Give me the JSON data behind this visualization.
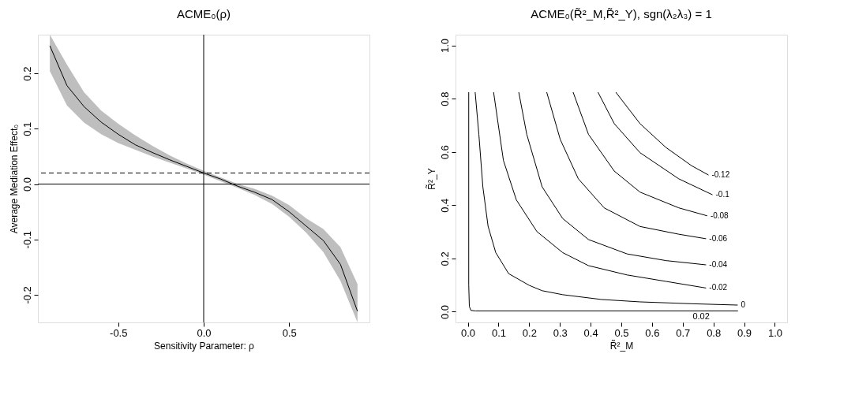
{
  "chart_data": [
    {
      "type": "line",
      "title": "ACME₀(ρ)",
      "xlabel": "Sensitivity Parameter: ρ",
      "ylabel": "Average Mediation Effect₀",
      "grid": false,
      "marker": "none",
      "line_style": "solid",
      "xlim": [
        -0.97,
        0.97
      ],
      "ylim": [
        -0.25,
        0.27
      ],
      "xticks": [
        {
          "value": -0.5,
          "label": "-0.5"
        },
        {
          "value": 0,
          "label": "0.0"
        },
        {
          "value": 0.5,
          "label": "0.5"
        }
      ],
      "yticks": [
        {
          "value": -0.2,
          "label": "-0.2"
        },
        {
          "value": -0.1,
          "label": "-0.1"
        },
        {
          "value": 0,
          "label": "0.0"
        },
        {
          "value": 0.1,
          "label": "0.1"
        },
        {
          "value": 0.2,
          "label": "0.2"
        }
      ],
      "series": [
        {
          "color": "#000000",
          "x": [
            -0.9,
            -0.8,
            -0.7,
            -0.6,
            -0.5,
            -0.4,
            -0.3,
            -0.2,
            -0.1,
            0,
            0.1,
            0.2,
            0.3,
            0.4,
            0.5,
            0.6,
            0.7,
            0.8,
            0.9
          ],
          "values": [
            0.25,
            0.178,
            0.14,
            0.112,
            0.09,
            0.071,
            0.057,
            0.044,
            0.032,
            0.02,
            0.009,
            -0.004,
            -0.015,
            -0.028,
            -0.05,
            -0.076,
            -0.102,
            -0.145,
            -0.23
          ],
          "lower": [
            0.204,
            0.142,
            0.111,
            0.09,
            0.074,
            0.062,
            0.05,
            0.039,
            0.028,
            0.017,
            0.005,
            -0.007,
            -0.02,
            -0.036,
            -0.059,
            -0.088,
            -0.123,
            -0.175,
            -0.25
          ],
          "upper": [
            0.27,
            0.216,
            0.166,
            0.133,
            0.109,
            0.088,
            0.069,
            0.052,
            0.037,
            0.024,
            0.012,
            0.0,
            -0.009,
            -0.021,
            -0.038,
            -0.062,
            -0.081,
            -0.114,
            -0.181
          ]
        }
      ],
      "ref_lines": [
        {
          "axis": "y",
          "value": 0,
          "color": "#000000",
          "line_style": "solid"
        },
        {
          "axis": "y",
          "value": 0.02,
          "color": "#000000",
          "line_style": "dashed"
        },
        {
          "axis": "x",
          "value": 0,
          "color": "#000000",
          "line_style": "solid"
        }
      ]
    },
    {
      "type": "line",
      "title": "ACME₀(R̃²_M,R̃²_Y), sgn(λ₂λ₃) = 1",
      "xlabel": "R̃²_M",
      "ylabel": "R̃²_Y",
      "grid": false,
      "marker": "none",
      "line_style": "solid",
      "xlim": [
        -0.04,
        1.04
      ],
      "ylim": [
        -0.04,
        1.04
      ],
      "xticks": [
        {
          "value": 0,
          "label": "0.0"
        },
        {
          "value": 0.1,
          "label": "0.1"
        },
        {
          "value": 0.2,
          "label": "0.2"
        },
        {
          "value": 0.3,
          "label": "0.3"
        },
        {
          "value": 0.4,
          "label": "0.4"
        },
        {
          "value": 0.5,
          "label": "0.5"
        },
        {
          "value": 0.6,
          "label": "0.6"
        },
        {
          "value": 0.7,
          "label": "0.7"
        },
        {
          "value": 0.8,
          "label": "0.8"
        },
        {
          "value": 0.9,
          "label": "0.9"
        },
        {
          "value": 1,
          "label": "1.0"
        }
      ],
      "yticks": [
        {
          "value": 0,
          "label": "0.0"
        },
        {
          "value": 0.2,
          "label": "0.2"
        },
        {
          "value": 0.4,
          "label": "0.4"
        },
        {
          "value": 0.6,
          "label": "0.6"
        },
        {
          "value": 0.8,
          "label": "0.8"
        },
        {
          "value": 1,
          "label": "1.0"
        }
      ],
      "series": [
        {
          "color": "#000000",
          "x": [
            0.003,
            0.003,
            0.005,
            0.01,
            0.025,
            0.88
          ],
          "values": [
            0.824,
            0.1,
            0.02,
            0.005,
            0.003,
            0.003
          ]
        },
        {
          "name": "0",
          "color": "#000000",
          "x": [
            0.024,
            0.036,
            0.049,
            0.066,
            0.091,
            0.133,
            0.2,
            0.242,
            0.309,
            0.435,
            0.561,
            0.729,
            0.879
          ],
          "values": [
            0.824,
            0.666,
            0.469,
            0.321,
            0.222,
            0.143,
            0.099,
            0.079,
            0.064,
            0.046,
            0.037,
            0.03,
            0.025
          ]
        },
        {
          "name": "-0.02",
          "color": "#000000",
          "x": [
            0.084,
            0.116,
            0.158,
            0.225,
            0.309,
            0.393,
            0.519,
            0.645,
            0.776
          ],
          "values": [
            0.824,
            0.568,
            0.42,
            0.301,
            0.222,
            0.173,
            0.138,
            0.114,
            0.089
          ]
        },
        {
          "name": "-0.04",
          "color": "#000000",
          "x": [
            0.166,
            0.192,
            0.242,
            0.309,
            0.393,
            0.519,
            0.645,
            0.776
          ],
          "values": [
            0.824,
            0.666,
            0.469,
            0.35,
            0.271,
            0.217,
            0.192,
            0.176
          ]
        },
        {
          "name": "-0.06",
          "color": "#000000",
          "x": [
            0.257,
            0.301,
            0.36,
            0.444,
            0.561,
            0.687,
            0.776
          ],
          "values": [
            0.824,
            0.647,
            0.499,
            0.39,
            0.32,
            0.291,
            0.274
          ]
        },
        {
          "name": "-0.08",
          "color": "#000000",
          "x": [
            0.343,
            0.393,
            0.477,
            0.561,
            0.687,
            0.78
          ],
          "values": [
            0.824,
            0.666,
            0.528,
            0.449,
            0.39,
            0.36
          ]
        },
        {
          "name": "-0.1",
          "color": "#000000",
          "x": [
            0.424,
            0.477,
            0.561,
            0.687,
            0.797
          ],
          "values": [
            0.824,
            0.706,
            0.597,
            0.499,
            0.439
          ]
        },
        {
          "name": "-0.12",
          "color": "#000000",
          "x": [
            0.482,
            0.561,
            0.645,
            0.729,
            0.784
          ],
          "values": [
            0.824,
            0.706,
            0.617,
            0.548,
            0.513
          ]
        }
      ],
      "annotations": [
        {
          "text": "0.02",
          "x": 0.76,
          "y": 0.003
        }
      ]
    }
  ]
}
